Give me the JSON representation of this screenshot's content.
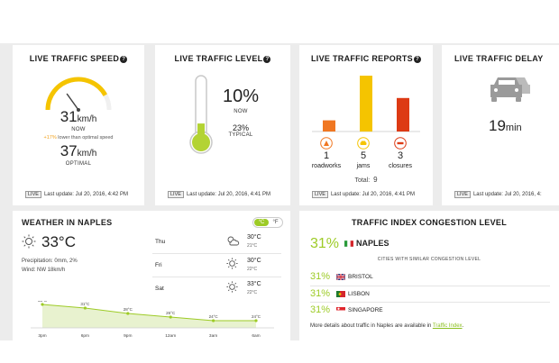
{
  "colors": {
    "accent_green": "#b3d334",
    "gauge_yellow": "#f5c400",
    "roadworks": "#f07722",
    "jams": "#f5c400",
    "closures": "#dd3a14",
    "car_gray": "#9a9a9a"
  },
  "speed": {
    "title": "LIVE TRAFFIC SPEED",
    "value": "31",
    "unit": "km/h",
    "now_label": "NOW",
    "compare_pct": "+17%",
    "compare_text": "lower than optimal speed",
    "optimal_value": "37",
    "optimal_unit": "km/h",
    "optimal_label": "OPTIMAL",
    "live": "LIVE",
    "update": "Last update: Jul 20, 2016, 4:42 PM",
    "gauge_fraction": 0.84
  },
  "level": {
    "title": "LIVE TRAFFIC LEVEL",
    "value": "10%",
    "now_label": "NOW",
    "typical_value": "23%",
    "typical_label": "TYPICAL",
    "live": "LIVE",
    "update": "Last update: Jul 20, 2016, 4:41 PM",
    "thermometer_fraction": 0.27
  },
  "reports": {
    "title": "LIVE TRAFFIC REPORTS",
    "items": [
      {
        "count": "1",
        "label": "roadworks",
        "value": 1,
        "icon": "roadworks-icon"
      },
      {
        "count": "5",
        "label": "jams",
        "value": 5,
        "icon": "jam-car-icon"
      },
      {
        "count": "3",
        "label": "closures",
        "value": 3,
        "icon": "closure-icon"
      }
    ],
    "total_label": "Total:",
    "total": "9",
    "live": "LIVE",
    "update": "Last update: Jul 20, 2016, 4:41 PM"
  },
  "delay": {
    "title": "LIVE TRAFFIC DELAY",
    "value": "19",
    "unit": "min",
    "live": "LIVE",
    "update": "Last update: Jul 20, 2016, 4:"
  },
  "weather": {
    "title": "WEATHER IN NAPLES",
    "toggle_c": "°C",
    "toggle_f": "°F",
    "temp": "33°C",
    "precip_label": "Precipitation:",
    "precip_value": "0mm, 2%",
    "wind_label": "Wind:",
    "wind_value": "NW 18km/h",
    "forecast": [
      {
        "day": "Thu",
        "high": "30°C",
        "low": "21°C",
        "icon": "partly-cloudy-icon"
      },
      {
        "day": "Fri",
        "high": "30°C",
        "low": "22°C",
        "icon": "sun-icon"
      },
      {
        "day": "Sat",
        "high": "33°C",
        "low": "22°C",
        "icon": "sun-icon"
      }
    ]
  },
  "chart_data": {
    "type": "area",
    "categories": [
      "3pm",
      "6pm",
      "9pm",
      "12am",
      "3am",
      "6am"
    ],
    "series": [
      {
        "values": [
          33,
          31,
          28,
          26,
          24,
          24
        ]
      }
    ],
    "labels": [
      "33°C",
      "31°C",
      "28°C",
      "26°C",
      "24°C",
      "24°C"
    ],
    "ylim": [
      20,
      36
    ],
    "grid": false
  },
  "index": {
    "title": "TRAFFIC INDEX CONGESTION LEVEL",
    "main_pct": "31%",
    "main_city": "NAPLES",
    "similar_label": "CITIES WITH SIMILAR CONGESTION LEVEL",
    "cities": [
      {
        "pct": "31%",
        "name": "BRISTOL",
        "flag": "uk-flag-icon"
      },
      {
        "pct": "31%",
        "name": "LISBON",
        "flag": "portugal-flag-icon"
      },
      {
        "pct": "31%",
        "name": "SINGAPORE",
        "flag": "singapore-flag-icon"
      }
    ],
    "details_text": "More details about traffic in Naples are available in",
    "details_link": "Traffic Index",
    "details_end": "."
  }
}
